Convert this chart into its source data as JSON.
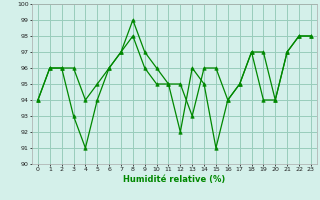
{
  "title": "",
  "xlabel": "Humidité relative (%)",
  "ylabel": "",
  "background_color": "#d4f0ea",
  "line_color": "#008800",
  "grid_color": "#99ccbb",
  "x_values": [
    0,
    1,
    2,
    3,
    4,
    5,
    6,
    7,
    8,
    9,
    10,
    11,
    12,
    13,
    14,
    15,
    16,
    17,
    18,
    19,
    20,
    21,
    22,
    23
  ],
  "series1": [
    94,
    96,
    96,
    93,
    91,
    94,
    96,
    97,
    99,
    97,
    96,
    95,
    92,
    96,
    95,
    91,
    94,
    95,
    97,
    94,
    94,
    97,
    98,
    98
  ],
  "series2": [
    94,
    96,
    96,
    96,
    94,
    95,
    96,
    97,
    98,
    96,
    95,
    95,
    95,
    93,
    96,
    96,
    94,
    95,
    97,
    97,
    94,
    97,
    98,
    98
  ],
  "ylim": [
    90,
    100
  ],
  "xlim": [
    -0.5,
    23.5
  ],
  "yticks": [
    90,
    91,
    92,
    93,
    94,
    95,
    96,
    97,
    98,
    99,
    100
  ],
  "xticks": [
    0,
    1,
    2,
    3,
    4,
    5,
    6,
    7,
    8,
    9,
    10,
    11,
    12,
    13,
    14,
    15,
    16,
    17,
    18,
    19,
    20,
    21,
    22,
    23
  ]
}
